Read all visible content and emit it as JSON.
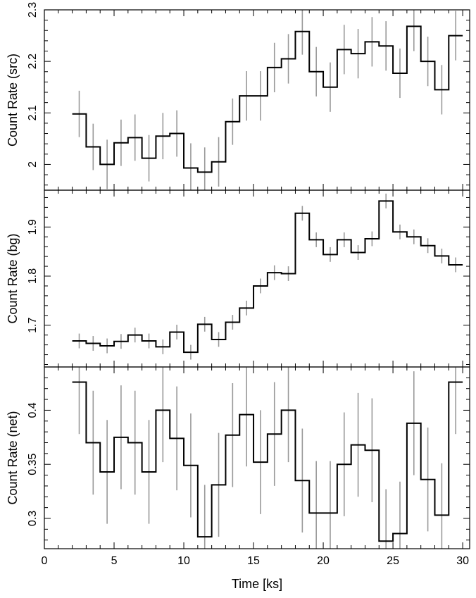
{
  "chart_data": [
    {
      "type": "line",
      "step": true,
      "ylabel": "Count Rate (src)",
      "ylim": [
        1.95,
        2.3
      ],
      "yticks": [
        2,
        2.1,
        2.2,
        2.3
      ],
      "ytick_labels": [
        "2",
        "2.1",
        "2.2",
        "2.3"
      ],
      "x": [
        2.5,
        3.5,
        4.5,
        5.5,
        6.5,
        7.5,
        8.5,
        9.5,
        10.5,
        11.5,
        12.5,
        13.5,
        14.5,
        15.5,
        16.5,
        17.5,
        18.5,
        19.5,
        20.5,
        21.5,
        22.5,
        23.5,
        24.5,
        25.5,
        26.5,
        27.5,
        28.5,
        29.5
      ],
      "values": [
        2.098,
        2.034,
        2.0,
        2.042,
        2.052,
        2.012,
        2.055,
        2.06,
        1.993,
        1.985,
        2.005,
        2.083,
        2.133,
        2.133,
        2.188,
        2.205,
        2.258,
        2.18,
        2.15,
        2.223,
        2.215,
        2.238,
        2.23,
        2.177,
        2.268,
        2.2,
        2.145,
        2.25
      ],
      "errors": [
        0.045,
        0.045,
        0.048,
        0.045,
        0.045,
        0.045,
        0.045,
        0.045,
        0.048,
        0.048,
        0.048,
        0.045,
        0.048,
        0.048,
        0.048,
        0.048,
        0.045,
        0.048,
        0.048,
        0.048,
        0.048,
        0.048,
        0.048,
        0.048,
        0.048,
        0.048,
        0.048,
        0.048
      ],
      "line_color": "#000000",
      "error_color": "#999999"
    },
    {
      "type": "line",
      "step": true,
      "ylabel": "Count Rate (bg)",
      "ylim": [
        1.615,
        1.975
      ],
      "yticks": [
        1.7,
        1.8,
        1.9
      ],
      "ytick_labels": [
        "1.7",
        "1.8",
        "1.9"
      ],
      "x": [
        2.5,
        3.5,
        4.5,
        5.5,
        6.5,
        7.5,
        8.5,
        9.5,
        10.5,
        11.5,
        12.5,
        13.5,
        14.5,
        15.5,
        16.5,
        17.5,
        18.5,
        19.5,
        20.5,
        21.5,
        22.5,
        23.5,
        24.5,
        25.5,
        26.5,
        27.5,
        28.5,
        29.5
      ],
      "values": [
        1.668,
        1.663,
        1.658,
        1.667,
        1.68,
        1.668,
        1.656,
        1.686,
        1.645,
        1.702,
        1.671,
        1.706,
        1.735,
        1.78,
        1.807,
        1.805,
        1.928,
        1.874,
        1.844,
        1.874,
        1.848,
        1.876,
        1.953,
        1.89,
        1.88,
        1.862,
        1.841,
        1.823
      ],
      "errors": [
        0.015,
        0.015,
        0.015,
        0.015,
        0.015,
        0.015,
        0.015,
        0.015,
        0.015,
        0.015,
        0.015,
        0.015,
        0.015,
        0.015,
        0.015,
        0.015,
        0.015,
        0.015,
        0.015,
        0.015,
        0.015,
        0.015,
        0.015,
        0.015,
        0.015,
        0.015,
        0.015,
        0.015
      ],
      "line_color": "#000000",
      "error_color": "#999999"
    },
    {
      "type": "line",
      "step": true,
      "ylabel": "Count Rate (net)",
      "ylim": [
        0.272,
        0.44
      ],
      "yticks": [
        0.3,
        0.35,
        0.4
      ],
      "ytick_labels": [
        "0.3",
        "0.35",
        "0.4"
      ],
      "xlabel": "Time [ks]",
      "xlim": [
        0,
        30.5
      ],
      "xticks": [
        0,
        5,
        10,
        15,
        20,
        25,
        30
      ],
      "xtick_labels": [
        "0",
        "5",
        "10",
        "15",
        "20",
        "25",
        "30"
      ],
      "x": [
        2.5,
        3.5,
        4.5,
        5.5,
        6.5,
        7.5,
        8.5,
        9.5,
        10.5,
        11.5,
        12.5,
        13.5,
        14.5,
        15.5,
        16.5,
        17.5,
        18.5,
        19.5,
        20.5,
        21.5,
        22.5,
        23.5,
        24.5,
        25.5,
        26.5,
        27.5,
        28.5,
        29.5
      ],
      "values": [
        0.426,
        0.37,
        0.343,
        0.375,
        0.37,
        0.343,
        0.4,
        0.374,
        0.349,
        0.283,
        0.331,
        0.377,
        0.396,
        0.352,
        0.378,
        0.4,
        0.335,
        0.305,
        0.305,
        0.35,
        0.368,
        0.363,
        0.279,
        0.286,
        0.388,
        0.336,
        0.303,
        0.426
      ],
      "errors": [
        0.048,
        0.048,
        0.048,
        0.048,
        0.048,
        0.048,
        0.048,
        0.048,
        0.048,
        0.048,
        0.048,
        0.048,
        0.048,
        0.048,
        0.048,
        0.048,
        0.048,
        0.048,
        0.048,
        0.048,
        0.048,
        0.048,
        0.048,
        0.048,
        0.048,
        0.048,
        0.048,
        0.048
      ],
      "line_color": "#000000",
      "error_color": "#999999"
    }
  ]
}
